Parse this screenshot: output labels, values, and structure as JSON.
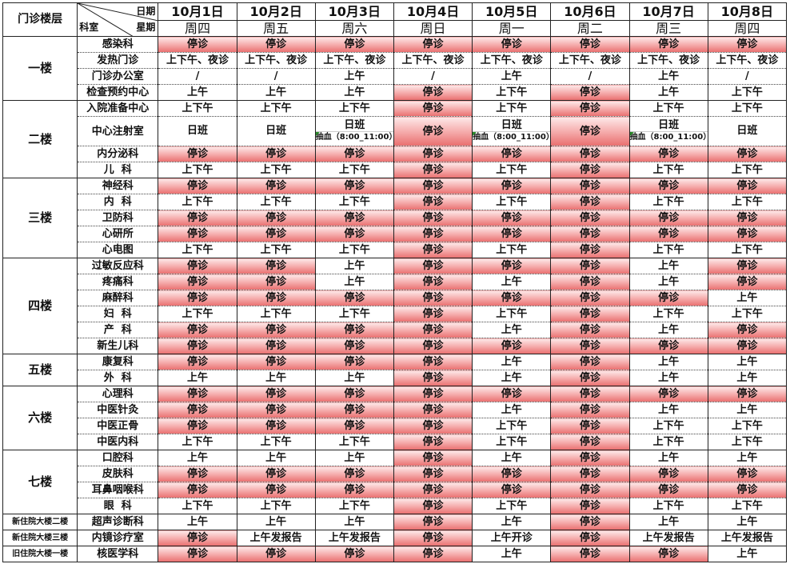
{
  "header": {
    "floor_label": "门诊楼层",
    "date_label": "日期",
    "dept_label": "科室",
    "week_label": "星期",
    "dates": [
      "10月1日",
      "10月2日",
      "10月3日",
      "10月4日",
      "10月5日",
      "10月6日",
      "10月7日",
      "10月8日"
    ],
    "weekdays": [
      "周四",
      "周五",
      "周六",
      "周日",
      "周一",
      "周二",
      "周三",
      "周四"
    ]
  },
  "closed_text": "停诊",
  "colors": {
    "closed_fill": "#e96e6e",
    "border": "#222222"
  },
  "floors": [
    {
      "name": "一楼",
      "rows": [
        {
          "dept": "感染科",
          "cells": [
            "停诊",
            "停诊",
            "停诊",
            "停诊",
            "停诊",
            "停诊",
            "停诊",
            "停诊"
          ]
        },
        {
          "dept": "发热门诊",
          "cells": [
            "上下午、夜诊",
            "上下午、夜诊",
            "上下午、夜诊",
            "上下午、夜诊",
            "上下午、夜诊",
            "上下午、夜诊",
            "上下午、夜诊",
            "上下午、夜诊"
          ]
        },
        {
          "dept": "门诊办公室",
          "cells": [
            "/",
            "/",
            "上午",
            "/",
            "上午",
            "/",
            "上午",
            "/"
          ]
        },
        {
          "dept": "检查预约中心",
          "cells": [
            "上午",
            "上午",
            "上午",
            "停诊",
            "上下午",
            "停诊",
            "上午",
            "上下午"
          ]
        }
      ]
    },
    {
      "name": "二楼",
      "rows": [
        {
          "dept": "入院准备中心",
          "cells": [
            "上下午",
            "上下午",
            "上下午",
            "停诊",
            "上下午",
            "停诊",
            "上下午",
            "上下午"
          ]
        },
        {
          "dept": "中心注射室",
          "cells": [
            {
              "main": "日班"
            },
            {
              "main": "日班"
            },
            {
              "main": "日班",
              "sub": "抽血（8:00_11:00）"
            },
            "停诊",
            {
              "main": "日班",
              "sub": "抽血（8:00_11:00）"
            },
            "停诊",
            {
              "main": "日班",
              "sub": "抽血（8:00_11:00）"
            },
            {
              "main": "日班"
            }
          ]
        },
        {
          "dept": "内分泌科",
          "cells": [
            "停诊",
            "停诊",
            "停诊",
            "停诊",
            "停诊",
            "停诊",
            "停诊",
            "停诊"
          ]
        },
        {
          "dept": "儿  科",
          "cells": [
            "上下午",
            "上下午",
            "上下午",
            "停诊",
            "上下午",
            "停诊",
            "上下午",
            "上下午"
          ]
        }
      ]
    },
    {
      "name": "三楼",
      "rows": [
        {
          "dept": "神经科",
          "cells": [
            "停诊",
            "停诊",
            "停诊",
            "停诊",
            "停诊",
            "停诊",
            "停诊",
            "停诊"
          ]
        },
        {
          "dept": "内  科",
          "cells": [
            "上下午",
            "上下午",
            "上下午",
            "停诊",
            "上下午",
            "停诊",
            "上下午",
            "上下午"
          ]
        },
        {
          "dept": "卫防科",
          "cells": [
            "停诊",
            "停诊",
            "停诊",
            "停诊",
            "停诊",
            "停诊",
            "停诊",
            "停诊"
          ]
        },
        {
          "dept": "心研所",
          "cells": [
            "停诊",
            "停诊",
            "停诊",
            "停诊",
            "停诊",
            "停诊",
            "停诊",
            "停诊"
          ]
        },
        {
          "dept": "心电图",
          "cells": [
            "上下午",
            "上下午",
            "上下午",
            "停诊",
            "上下午",
            "停诊",
            "上下午",
            "上下午"
          ]
        }
      ]
    },
    {
      "name": "四楼",
      "rows": [
        {
          "dept": "过敏反应科",
          "cells": [
            "停诊",
            "停诊",
            "上午",
            "停诊",
            "停诊",
            "停诊",
            "上午",
            "停诊"
          ]
        },
        {
          "dept": "疼痛科",
          "cells": [
            "停诊",
            "停诊",
            "上午",
            "停诊",
            "上午",
            "停诊",
            "上午",
            "停诊"
          ]
        },
        {
          "dept": "麻醉科",
          "cells": [
            "停诊",
            "停诊",
            "停诊",
            "停诊",
            "停诊",
            "停诊",
            "停诊",
            "上午"
          ]
        },
        {
          "dept": "妇  科",
          "cells": [
            "上下午",
            "上下午",
            "上下午",
            "停诊",
            "上下午",
            "停诊",
            "上下午",
            "上下午"
          ]
        },
        {
          "dept": "产  科",
          "cells": [
            "停诊",
            "停诊",
            "停诊",
            "停诊",
            "上午",
            "停诊",
            "上午",
            "停诊"
          ]
        },
        {
          "dept": "新生儿科",
          "cells": [
            "停诊",
            "停诊",
            "停诊",
            "停诊",
            "停诊",
            "停诊",
            "停诊",
            "停诊"
          ]
        }
      ]
    },
    {
      "name": "五楼",
      "rows": [
        {
          "dept": "康复科",
          "cells": [
            "停诊",
            "停诊",
            "停诊",
            "停诊",
            "上午",
            "停诊",
            "上午",
            "上午"
          ]
        },
        {
          "dept": "外  科",
          "cells": [
            "上午",
            "上午",
            "上午",
            "停诊",
            "上午",
            "停诊",
            "上午",
            "上午"
          ]
        }
      ]
    },
    {
      "name": "六楼",
      "rows": [
        {
          "dept": "心理科",
          "cells": [
            "停诊",
            "停诊",
            "停诊",
            "停诊",
            "停诊",
            "停诊",
            "停诊",
            "停诊"
          ]
        },
        {
          "dept": "中医针灸",
          "cells": [
            "停诊",
            "停诊",
            "停诊",
            "停诊",
            "上午",
            "停诊",
            "上午",
            "上午"
          ]
        },
        {
          "dept": "中医正骨",
          "cells": [
            "停诊",
            "停诊",
            "停诊",
            "停诊",
            "上下午",
            "停诊",
            "上下午",
            "上下午"
          ]
        },
        {
          "dept": "中医内科",
          "cells": [
            "上下午",
            "上下午",
            "上下午",
            "停诊",
            "上下午",
            "停诊",
            "上下午",
            "上下午"
          ]
        }
      ]
    },
    {
      "name": "七楼",
      "rows": [
        {
          "dept": "口腔科",
          "cells": [
            "上午",
            "上午",
            "上午",
            "停诊",
            "上午",
            "停诊",
            "上午",
            "上午"
          ]
        },
        {
          "dept": "皮肤科",
          "cells": [
            "停诊",
            "停诊",
            "停诊",
            "停诊",
            "停诊",
            "停诊",
            "停诊",
            "停诊"
          ]
        },
        {
          "dept": "耳鼻咽喉科",
          "cells": [
            "停诊",
            "停诊",
            "停诊",
            "停诊",
            "停诊",
            "停诊",
            "停诊",
            "停诊"
          ]
        },
        {
          "dept": "眼  科",
          "cells": [
            "上下午",
            "上下午",
            "上下午",
            "停诊",
            "上下午",
            "停诊",
            "上下午",
            "上下午"
          ]
        }
      ]
    },
    {
      "name": "新住院大楼二楼",
      "small": true,
      "rows": [
        {
          "dept": "超声诊断科",
          "cells": [
            "上午",
            "上午",
            "上午",
            "停诊",
            "上午",
            "停诊",
            "上午",
            "上午"
          ]
        }
      ]
    },
    {
      "name": "新住院大楼三楼",
      "small": true,
      "rows": [
        {
          "dept": "内镜诊疗室",
          "cells": [
            "停诊",
            "上午发报告",
            "上午发报告",
            "停诊",
            "上午开诊",
            "停诊",
            "上午发报告",
            "上午发报告"
          ]
        }
      ]
    },
    {
      "name": "旧住院大楼一楼",
      "small": true,
      "rows": [
        {
          "dept": "核医学科",
          "cells": [
            "停诊",
            "停诊",
            "停诊",
            "停诊",
            "上午",
            "停诊",
            "停诊",
            "上午"
          ]
        }
      ]
    }
  ]
}
